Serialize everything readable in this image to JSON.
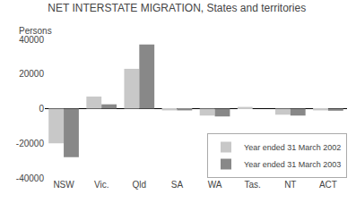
{
  "chart_data": {
    "type": "bar",
    "title": "NET INTERSTATE MIGRATION, States and territories",
    "ylabel": "Persons",
    "categories": [
      "NSW",
      "Vic.",
      "Qld",
      "SA",
      "WA",
      "Tas.",
      "NT",
      "ACT"
    ],
    "series": [
      {
        "name": "Year ended 31 March 2002",
        "color": "#c8c8c8",
        "values": [
          -20000,
          7000,
          23000,
          -1000,
          -4000,
          1000,
          -3500,
          -1000
        ]
      },
      {
        "name": "Year ended 31 March 2003",
        "color": "#888888",
        "values": [
          -28000,
          2500,
          37000,
          -1000,
          -4500,
          0,
          -4000,
          -1200
        ]
      }
    ],
    "ylim": [
      -40000,
      40000
    ],
    "yticks": [
      -40000,
      -20000,
      0,
      20000,
      40000
    ],
    "grid": false,
    "legend": "lower right"
  }
}
